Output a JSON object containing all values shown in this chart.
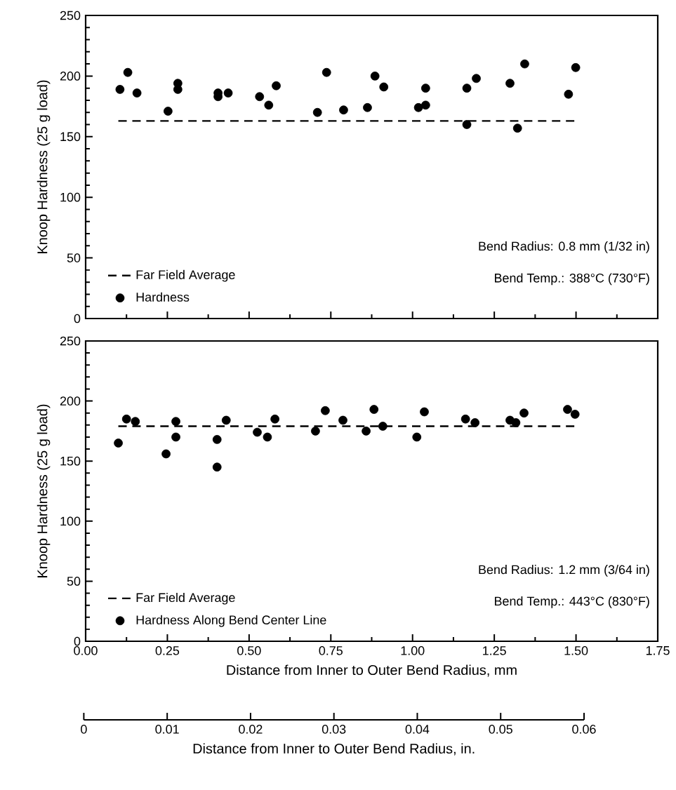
{
  "chart_data": [
    {
      "type": "scatter",
      "ylabel": "Knoop Hardness (25 g load)",
      "xlim": [
        0,
        1.75
      ],
      "ylim": [
        0,
        250
      ],
      "xticks": [
        0,
        0.25,
        0.5,
        0.75,
        1,
        1.25,
        1.5,
        1.75
      ],
      "yticks": [
        0,
        50,
        100,
        150,
        200,
        250
      ],
      "tick_labels": "y",
      "legend": "bottom left",
      "grid": false,
      "annotations": [
        "Bend Radius: 0.8 mm (1/32 in)",
        "Bend Temp.: 388°C (730°F)"
      ],
      "series": [
        {
          "name": "Far Field Average",
          "type": "line",
          "line_style": "dashed",
          "marker": "none",
          "color": "#000000",
          "x": [
            0.1,
            1.5
          ],
          "values": [
            163,
            163
          ]
        },
        {
          "name": "Hardness",
          "marker": "circle",
          "color": "#000000",
          "x": [
            0.105,
            0.129,
            0.157,
            0.252,
            0.282,
            0.282,
            0.405,
            0.405,
            0.436,
            0.532,
            0.56,
            0.583,
            0.709,
            0.737,
            0.789,
            0.862,
            0.885,
            0.912,
            1.018,
            1.04,
            1.04,
            1.166,
            1.166,
            1.195,
            1.298,
            1.321,
            1.343,
            1.477,
            1.499
          ],
          "values": [
            189,
            203,
            186,
            171,
            194,
            189,
            186,
            183,
            186,
            183,
            176,
            192,
            170,
            203,
            172,
            174,
            200,
            191,
            174,
            176,
            190,
            190,
            160,
            198,
            194,
            157,
            210,
            185,
            207
          ]
        }
      ]
    },
    {
      "type": "scatter",
      "ylabel": "Knoop Hardness (25 g load)",
      "xlabel": "Distance from Inner to Outer Bend Radius, mm",
      "xlim": [
        0,
        1.75
      ],
      "ylim": [
        0,
        250
      ],
      "xticks": [
        {
          "value": 0,
          "label": "0.00"
        },
        {
          "value": 0.25,
          "label": "0.25"
        },
        {
          "value": 0.5,
          "label": "0.50"
        },
        {
          "value": 0.75,
          "label": "0.75"
        },
        {
          "value": 1,
          "label": "1.00"
        },
        {
          "value": 1.25,
          "label": "1.25"
        },
        {
          "value": 1.5,
          "label": "1.50"
        },
        {
          "value": 1.75,
          "label": "1.75"
        }
      ],
      "yticks": [
        0,
        50,
        100,
        150,
        200,
        250
      ],
      "legend": "bottom left",
      "grid": false,
      "x2lim": [
        0,
        0.06
      ],
      "x2ticks": [
        0,
        0.01,
        0.02,
        0.03,
        0.04,
        0.05,
        0.06
      ],
      "x2label": "Distance from Inner to Outer Bend Radius, in.",
      "annotations": [
        "Bend Radius: 1.2 mm (3/64 in)",
        "Bend Temp.: 443°C (830°F)"
      ],
      "series": [
        {
          "name": "Far Field Average",
          "type": "line",
          "line_style": "dashed",
          "marker": "none",
          "color": "#000000",
          "x": [
            0.1,
            1.5
          ],
          "values": [
            179,
            179
          ]
        },
        {
          "name": "Hardness Along Bend Center Line",
          "marker": "circle",
          "color": "#000000",
          "x": [
            0.1,
            0.125,
            0.152,
            0.246,
            0.276,
            0.276,
            0.402,
            0.402,
            0.43,
            0.525,
            0.556,
            0.579,
            0.703,
            0.733,
            0.787,
            0.858,
            0.882,
            0.909,
            1.013,
            1.036,
            1.162,
            1.191,
            1.298,
            1.316,
            1.341,
            1.474,
            1.497
          ],
          "values": [
            165,
            185,
            183,
            156,
            183,
            170,
            168,
            145,
            184,
            174,
            170,
            185,
            175,
            192,
            184,
            175,
            193,
            179,
            170,
            191,
            185,
            182,
            184,
            182,
            190,
            193,
            189
          ]
        }
      ]
    }
  ]
}
